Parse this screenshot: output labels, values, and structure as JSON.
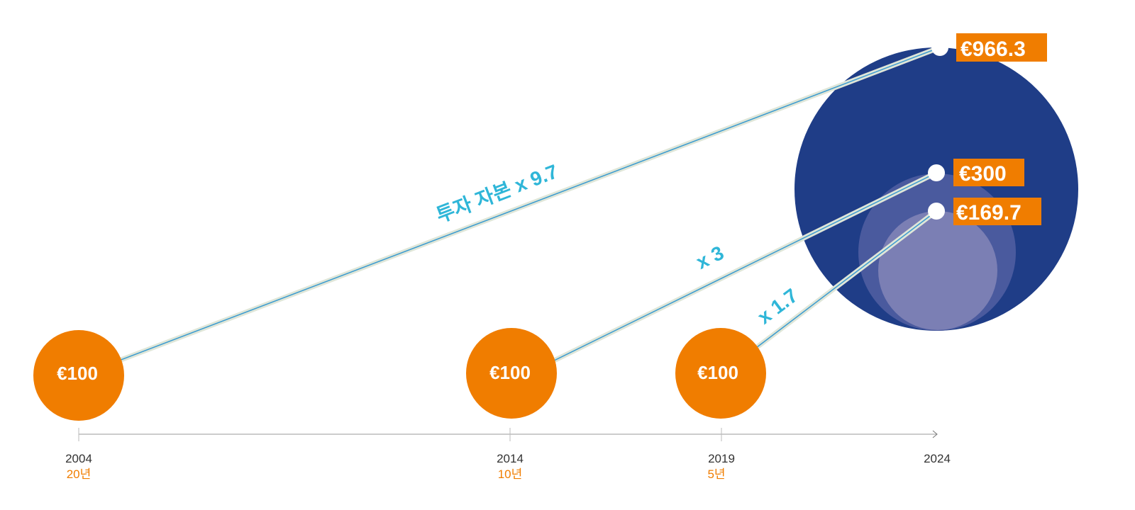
{
  "colors": {
    "orange": "#f07d00",
    "navy": "#1f3d87",
    "mid_circle": "#4a5a9e",
    "small_circle": "#7b7fb4",
    "multiplier": "#2fb6d8"
  },
  "investments": [
    {
      "start_year": "2004",
      "duration": "20년",
      "start_value": "€100",
      "end_value": "€966.3",
      "multiplier": "투자 자본 x 9.7"
    },
    {
      "start_year": "2014",
      "duration": "10년",
      "start_value": "€100",
      "end_value": "€300",
      "multiplier": "x 3"
    },
    {
      "start_year": "2019",
      "duration": "5년",
      "start_value": "€100",
      "end_value": "€169.7",
      "multiplier": "x 1.7"
    }
  ],
  "end_year": "2024"
}
